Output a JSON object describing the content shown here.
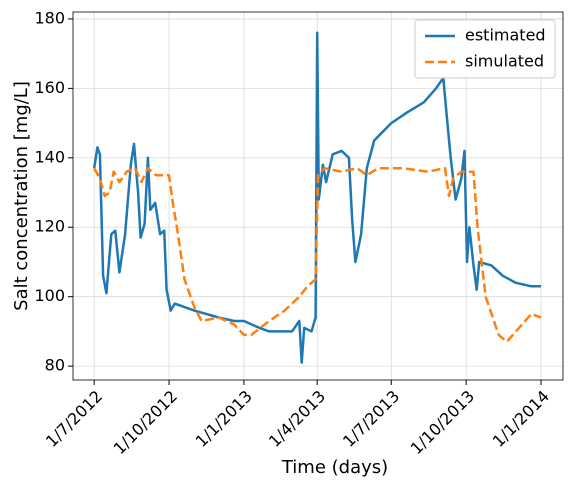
{
  "chart_data": {
    "type": "line",
    "xlabel": "Time (days)",
    "ylabel": "Salt concentration [mg/L]",
    "xlim": [
      "2012-06-05",
      "2014-01-28"
    ],
    "xticks": [
      {
        "value": "2012-07-01",
        "label": "1/7/2012"
      },
      {
        "value": "2012-10-01",
        "label": "1/10/2012"
      },
      {
        "value": "2013-01-01",
        "label": "1/1/2013"
      },
      {
        "value": "2013-04-01",
        "label": "1/4/2013"
      },
      {
        "value": "2013-07-01",
        "label": "1/7/2013"
      },
      {
        "value": "2013-10-01",
        "label": "1/10/2013"
      },
      {
        "value": "2014-01-01",
        "label": "1/1/2014"
      }
    ],
    "ylim": [
      76,
      182
    ],
    "yticks": [
      80,
      100,
      120,
      140,
      160,
      180
    ],
    "grid": true,
    "legend": "upper right",
    "series": [
      {
        "name": "estimated",
        "color": "#1f77b4",
        "dash": "solid",
        "x": [
          "2012-07-01",
          "2012-07-05",
          "2012-07-08",
          "2012-07-12",
          "2012-07-16",
          "2012-07-22",
          "2012-07-27",
          "2012-08-01",
          "2012-08-08",
          "2012-08-15",
          "2012-08-19",
          "2012-08-24",
          "2012-08-27",
          "2012-09-01",
          "2012-09-05",
          "2012-09-08",
          "2012-09-14",
          "2012-09-20",
          "2012-09-25",
          "2012-09-28",
          "2012-10-03",
          "2012-10-08",
          "2012-10-20",
          "2012-11-01",
          "2012-12-01",
          "2012-12-20",
          "2013-01-01",
          "2013-01-20",
          "2013-02-01",
          "2013-03-01",
          "2013-03-10",
          "2013-03-13",
          "2013-03-16",
          "2013-03-25",
          "2013-03-30",
          "2013-04-01",
          "2013-04-03",
          "2013-04-08",
          "2013-04-12",
          "2013-04-20",
          "2013-05-01",
          "2013-05-10",
          "2013-05-14",
          "2013-05-18",
          "2013-05-25",
          "2013-06-01",
          "2013-06-10",
          "2013-07-01",
          "2013-07-20",
          "2013-08-10",
          "2013-08-25",
          "2013-09-03",
          "2013-09-06",
          "2013-09-12",
          "2013-09-18",
          "2013-09-25",
          "2013-09-29",
          "2013-10-02",
          "2013-10-05",
          "2013-10-10",
          "2013-10-14",
          "2013-10-17",
          "2013-11-01",
          "2013-11-15",
          "2013-12-01",
          "2013-12-20",
          "2014-01-01"
        ],
        "values": [
          137,
          143,
          141,
          106,
          101,
          118,
          119,
          107,
          118,
          138,
          144,
          130,
          117,
          121,
          140,
          125,
          127,
          118,
          119,
          102,
          96,
          98,
          97,
          96,
          94,
          93,
          93,
          91,
          90,
          90,
          93,
          81,
          91,
          90,
          94,
          176,
          128,
          138,
          133,
          141,
          142,
          140,
          122,
          110,
          118,
          137,
          145,
          150,
          153,
          156,
          160,
          163,
          155,
          140,
          128,
          134,
          142,
          110,
          120,
          109,
          102,
          110,
          109,
          106,
          104,
          103,
          103
        ]
      },
      {
        "name": "simulated",
        "color": "#ff7f0e",
        "dash": "dashed",
        "x": [
          "2012-07-01",
          "2012-07-08",
          "2012-07-14",
          "2012-07-20",
          "2012-07-25",
          "2012-08-01",
          "2012-08-10",
          "2012-08-20",
          "2012-08-28",
          "2012-09-05",
          "2012-09-15",
          "2012-09-25",
          "2012-10-01",
          "2012-10-05",
          "2012-10-12",
          "2012-10-20",
          "2012-11-01",
          "2012-11-10",
          "2012-12-01",
          "2012-12-20",
          "2013-01-01",
          "2013-01-10",
          "2013-02-01",
          "2013-02-20",
          "2013-03-10",
          "2013-03-20",
          "2013-03-30",
          "2013-04-02",
          "2013-04-10",
          "2013-05-01",
          "2013-05-20",
          "2013-06-01",
          "2013-06-15",
          "2013-07-15",
          "2013-08-15",
          "2013-09-05",
          "2013-09-10",
          "2013-09-15",
          "2013-09-25",
          "2013-10-10",
          "2013-10-15",
          "2013-10-25",
          "2013-11-10",
          "2013-11-20",
          "2013-12-05",
          "2013-12-20",
          "2014-01-01"
        ],
        "values": [
          137,
          134,
          129,
          130,
          136,
          133,
          136,
          137,
          133,
          137,
          135,
          135,
          135,
          128,
          118,
          105,
          97,
          93,
          94,
          92,
          89,
          89,
          93,
          96,
          100,
          103,
          105,
          135,
          137,
          136,
          137,
          135,
          137,
          137,
          136,
          137,
          129,
          134,
          136,
          136,
          120,
          100,
          89,
          87,
          91,
          95,
          94
        ]
      }
    ]
  }
}
